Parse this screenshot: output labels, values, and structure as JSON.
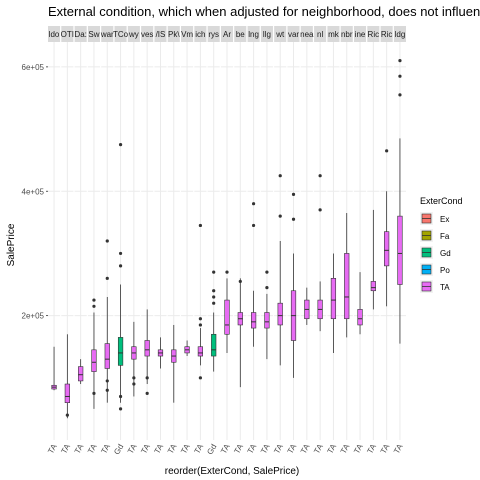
{
  "chart_data": {
    "type": "box",
    "title": "External condition, which when adjusted for neighborhood, does not influen",
    "xlabel": "reorder(ExterCond, SalePrice)",
    "ylabel": "SalePrice",
    "ylim": [
      0,
      640000
    ],
    "yticks": [
      200000,
      400000,
      600000
    ],
    "ytick_labels": [
      "2e+05",
      "4e+05",
      "6e+05"
    ],
    "grid": true,
    "legend": {
      "title": "ExterCond",
      "placement": "right",
      "entries": [
        {
          "label": "Ex",
          "color": "#F8766D"
        },
        {
          "label": "Fa",
          "color": "#A3A500"
        },
        {
          "label": "Gd",
          "color": "#00BF7D"
        },
        {
          "label": "Po",
          "color": "#00B0F6"
        },
        {
          "label": "TA",
          "color": "#E76BF3"
        }
      ]
    },
    "panels": [
      {
        "label": "ldo",
        "boxes": [
          {
            "cond": "TA",
            "min": 80000,
            "q1": 82000,
            "median": 85000,
            "q3": 88000,
            "max": 150000,
            "outliers": []
          }
        ]
      },
      {
        "label": "OTI",
        "boxes": [
          {
            "cond": "TA",
            "min": 35000,
            "q1": 60000,
            "median": 70000,
            "q3": 90000,
            "max": 170000,
            "outliers": [
              40000
            ]
          }
        ]
      },
      {
        "label": "Da:",
        "boxes": [
          {
            "cond": "TA",
            "min": 90000,
            "q1": 95000,
            "median": 105000,
            "q3": 118000,
            "max": 130000,
            "outliers": []
          }
        ]
      },
      {
        "label": "Sw",
        "boxes": [
          {
            "cond": "TA",
            "min": 50000,
            "q1": 110000,
            "median": 125000,
            "q3": 145000,
            "max": 205000,
            "outliers": [
              75000,
              215000,
              225000
            ]
          }
        ]
      },
      {
        "label": "war",
        "boxes": [
          {
            "cond": "TA",
            "min": 60000,
            "q1": 115000,
            "median": 130000,
            "q3": 155000,
            "max": 230000,
            "outliers": [
              80000,
              95000,
              260000,
              320000
            ]
          }
        ]
      },
      {
        "label": "TCo",
        "boxes": [
          {
            "cond": "Gd",
            "min": 60000,
            "q1": 120000,
            "median": 140000,
            "q3": 165000,
            "max": 250000,
            "outliers": [
              50000,
              70000,
              280000,
              300000,
              475000
            ]
          }
        ]
      },
      {
        "label": "wy",
        "boxes": [
          {
            "cond": "TA",
            "min": 70000,
            "q1": 130000,
            "median": 140000,
            "q3": 150000,
            "max": 190000,
            "outliers": [
              90000,
              100000
            ]
          }
        ]
      },
      {
        "label": "ves",
        "boxes": [
          {
            "cond": "TA",
            "min": 90000,
            "q1": 135000,
            "median": 145000,
            "q3": 160000,
            "max": 210000,
            "outliers": [
              75000,
              100000
            ]
          }
        ]
      },
      {
        "label": "/IS",
        "boxes": [
          {
            "cond": "TA",
            "min": 115000,
            "q1": 135000,
            "median": 140000,
            "q3": 145000,
            "max": 165000,
            "outliers": []
          }
        ]
      },
      {
        "label": "Pk\\",
        "boxes": [
          {
            "cond": "TA",
            "min": 60000,
            "q1": 125000,
            "median": 135000,
            "q3": 145000,
            "max": 185000,
            "outliers": []
          }
        ]
      },
      {
        "label": "Vm",
        "boxes": [
          {
            "cond": "TA",
            "min": 135000,
            "q1": 140000,
            "median": 145000,
            "q3": 150000,
            "max": 160000,
            "outliers": []
          }
        ]
      },
      {
        "label": "ich",
        "boxes": [
          {
            "cond": "TA",
            "min": 120000,
            "q1": 135000,
            "median": 140000,
            "q3": 150000,
            "max": 180000,
            "outliers": [
              100000,
              185000,
              195000,
              345000
            ]
          }
        ]
      },
      {
        "label": "rys",
        "boxes": [
          {
            "cond": "Gd",
            "min": 110000,
            "q1": 135000,
            "median": 145000,
            "q3": 170000,
            "max": 205000,
            "outliers": [
              220000,
              230000,
              240000,
              270000
            ]
          }
        ]
      },
      {
        "label": "Ar",
        "boxes": [
          {
            "cond": "TA",
            "min": 140000,
            "q1": 170000,
            "median": 185000,
            "q3": 225000,
            "max": 260000,
            "outliers": [
              270000
            ]
          }
        ]
      },
      {
        "label": "be",
        "boxes": [
          {
            "cond": "TA",
            "min": 85000,
            "q1": 185000,
            "median": 195000,
            "q3": 205000,
            "max": 260000,
            "outliers": [
              255000
            ]
          }
        ]
      },
      {
        "label": "lng",
        "boxes": [
          {
            "cond": "TA",
            "min": 150000,
            "q1": 180000,
            "median": 190000,
            "q3": 205000,
            "max": 240000,
            "outliers": [
              345000,
              380000
            ]
          }
        ]
      },
      {
        "label": "llg",
        "boxes": [
          {
            "cond": "TA",
            "min": 130000,
            "q1": 180000,
            "median": 190000,
            "q3": 205000,
            "max": 235000,
            "outliers": [
              245000,
              270000
            ]
          }
        ]
      },
      {
        "label": "wt",
        "boxes": [
          {
            "cond": "TA",
            "min": 120000,
            "q1": 185000,
            "median": 200000,
            "q3": 220000,
            "max": 320000,
            "outliers": [
              360000,
              425000
            ]
          }
        ]
      },
      {
        "label": "var",
        "boxes": [
          {
            "cond": "TA",
            "min": 100000,
            "q1": 160000,
            "median": 200000,
            "q3": 240000,
            "max": 300000,
            "outliers": [
              355000,
              395000
            ]
          }
        ]
      },
      {
        "label": "nea",
        "boxes": [
          {
            "cond": "TA",
            "min": 185000,
            "q1": 195000,
            "median": 210000,
            "q3": 225000,
            "max": 245000,
            "outliers": []
          }
        ]
      },
      {
        "label": "nl",
        "boxes": [
          {
            "cond": "TA",
            "min": 175000,
            "q1": 195000,
            "median": 210000,
            "q3": 225000,
            "max": 255000,
            "outliers": [
              370000,
              425000
            ]
          }
        ]
      },
      {
        "label": "mk",
        "boxes": [
          {
            "cond": "TA",
            "min": 140000,
            "q1": 195000,
            "median": 225000,
            "q3": 260000,
            "max": 300000,
            "outliers": []
          }
        ]
      },
      {
        "label": "nbr",
        "boxes": [
          {
            "cond": "TA",
            "min": 165000,
            "q1": 195000,
            "median": 230000,
            "q3": 300000,
            "max": 365000,
            "outliers": []
          }
        ]
      },
      {
        "label": "ine",
        "boxes": [
          {
            "cond": "TA",
            "min": 170000,
            "q1": 185000,
            "median": 195000,
            "q3": 210000,
            "max": 270000,
            "outliers": []
          }
        ]
      },
      {
        "label": "Ric",
        "boxes": [
          {
            "cond": "TA",
            "min": 210000,
            "q1": 240000,
            "median": 245000,
            "q3": 255000,
            "max": 370000,
            "outliers": []
          }
        ]
      },
      {
        "label": "Ric",
        "boxes": [
          {
            "cond": "TA",
            "min": 215000,
            "q1": 280000,
            "median": 305000,
            "q3": 335000,
            "max": 400000,
            "outliers": [
              465000
            ]
          }
        ]
      },
      {
        "label": "ldg",
        "boxes": [
          {
            "cond": "TA",
            "min": 155000,
            "q1": 250000,
            "median": 300000,
            "q3": 360000,
            "max": 485000,
            "outliers": [
              555000,
              585000,
              610000
            ]
          }
        ]
      }
    ]
  }
}
